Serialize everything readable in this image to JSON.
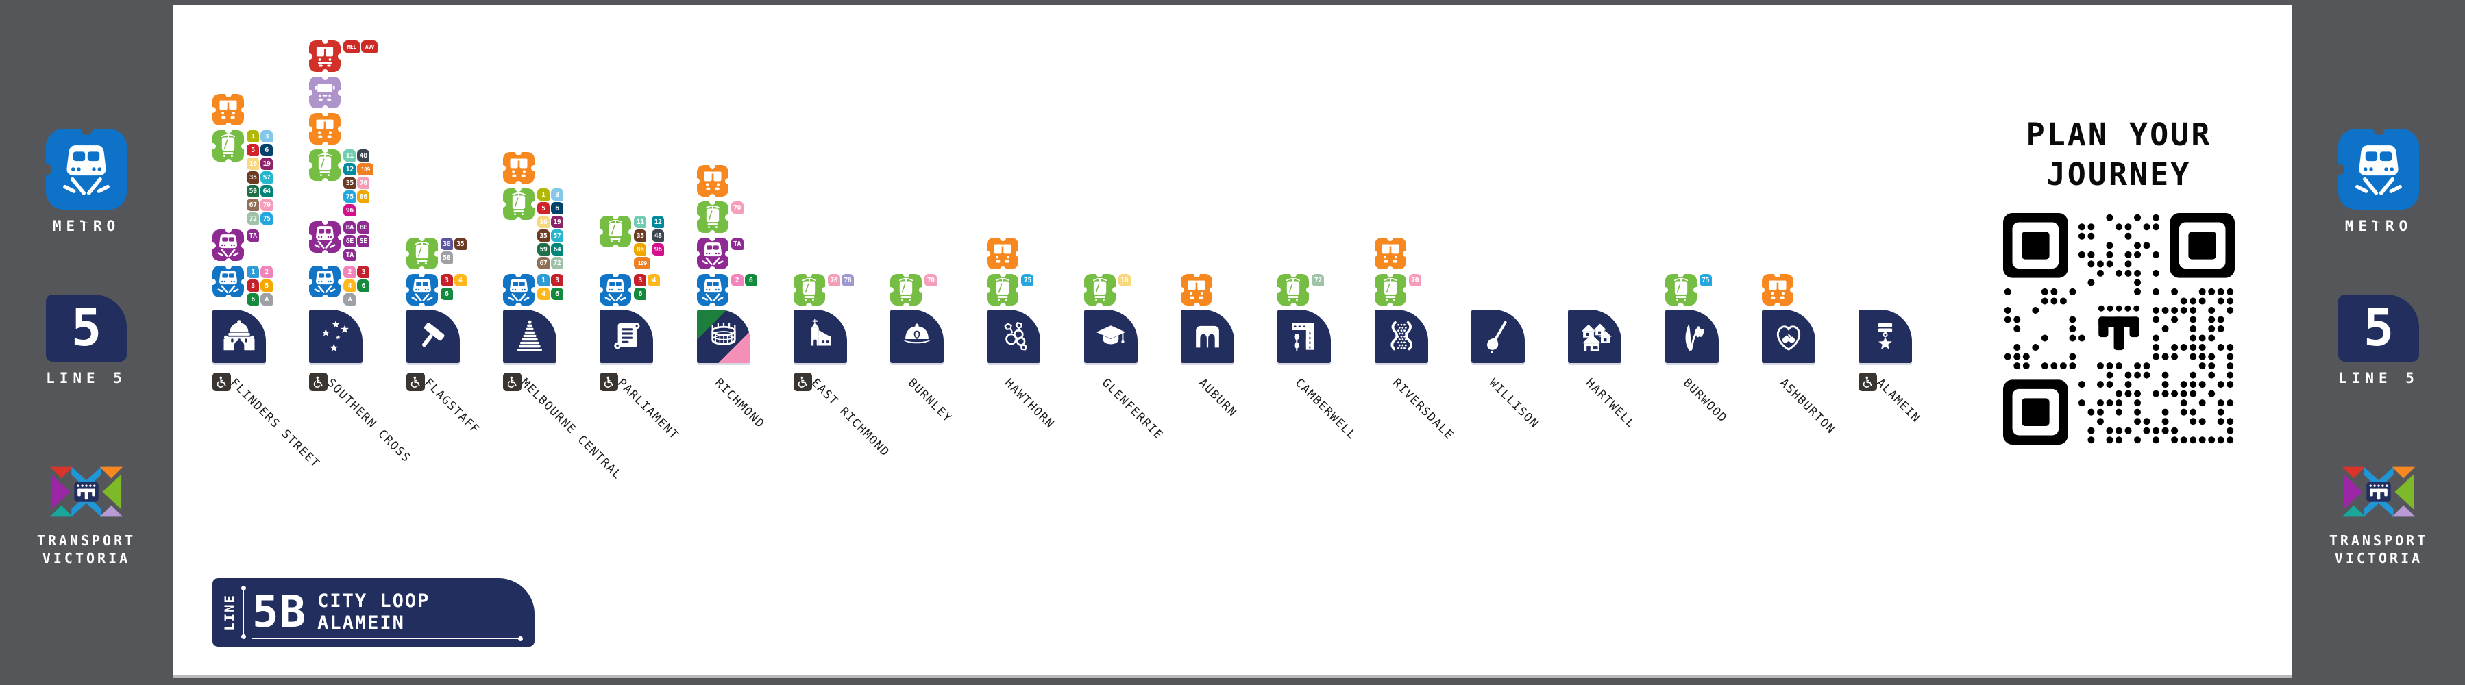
{
  "rail": {
    "metro_label": "METRO",
    "line_number": "5",
    "line_label": "LINE 5",
    "tv_label_1": "TRANSPORT",
    "tv_label_2": "VICTORIA",
    "metro_logo_icon": "metro-train-icon",
    "tv_logo_icon": "transport-victoria-icon"
  },
  "plan": {
    "line1": "PLAN YOUR",
    "line2": "JOURNEY",
    "qr_icon": "qr-code",
    "qr_logo_icon": "transport-victoria-t-icon"
  },
  "line_badge": {
    "line_word": "LINE",
    "code": "5B",
    "dest1": "CITY LOOP",
    "dest2": "ALAMEIN"
  },
  "colors": {
    "frame": "#55565A",
    "navy": "#212E5E",
    "metro_blue": "#0D72C8",
    "modes": {
      "bus": "#F6881F",
      "tram": "#76BD43",
      "metro": "#1274C5",
      "vline": "#8F2A93",
      "coach": "#D23129",
      "skybus": "#AE94CB"
    },
    "richmond_stripes": [
      "#1E7E3E",
      "#212E5E",
      "#F48FB8"
    ],
    "tram_routes": {
      "1": "#B0B800",
      "3": "#85C7E9",
      "5": "#D2232A",
      "6": "#01426A",
      "11": "#6FCDB2",
      "12": "#008A9B",
      "16": "#F9D77E",
      "19": "#8E2368",
      "30": "#5B569E",
      "35": "#6B3B23",
      "48": "#3C4650",
      "57": "#28B6CE",
      "58": "#9EA1A3",
      "59": "#1F7049",
      "64": "#008578",
      "67": "#8F6F55",
      "70": "#F59DB9",
      "72": "#9FC2A9",
      "75": "#24A7DF",
      "78": "#9D99D0",
      "86": "#EFA800",
      "96": "#D40F8C",
      "109": "#EE7F23"
    },
    "metro_routes": {
      "1": "#2E9BD6",
      "2": "#F284BC",
      "3": "#C5212C",
      "4": "#FFB81C",
      "5": "#F5A800",
      "6": "#148A3E",
      "A": "#9DA1A5"
    },
    "vline_route": "#8F2A93",
    "coach_route": "#CE2B26"
  },
  "stations": [
    {
      "name": "FLINDERS STREET",
      "icon": "dome-building",
      "accessible": true,
      "modes": [
        {
          "type": "bus",
          "routes": []
        },
        {
          "type": "tram",
          "routes": [
            "1",
            "3",
            "5",
            "6",
            "16",
            "19",
            "35",
            "57",
            "59",
            "64",
            "67",
            "70",
            "72",
            "75"
          ]
        },
        {
          "type": "vline",
          "routes": [
            "TA"
          ]
        },
        {
          "type": "metro",
          "routes": [
            "1",
            "2",
            "3",
            "5",
            "6",
            "A"
          ]
        }
      ]
    },
    {
      "name": "SOUTHERN CROSS",
      "icon": "southern-cross-stars",
      "accessible": true,
      "modes": [
        {
          "type": "coach",
          "routes": [
            "MEL",
            "AVV"
          ]
        },
        {
          "type": "skybus",
          "routes": []
        },
        {
          "type": "bus",
          "routes": []
        },
        {
          "type": "tram",
          "routes": [
            "11",
            "48",
            "12",
            "109",
            "35",
            "70",
            "75",
            "86",
            "96"
          ]
        },
        {
          "type": "vline",
          "routes": [
            "BA",
            "BE",
            "GE",
            "SE",
            "TA"
          ]
        },
        {
          "type": "metro",
          "routes": [
            "2",
            "3",
            "4",
            "6",
            "A"
          ]
        }
      ]
    },
    {
      "name": "FLAGSTAFF",
      "icon": "gavel",
      "accessible": true,
      "modes": [
        {
          "type": "tram",
          "routes": [
            "30",
            "35",
            "58"
          ]
        },
        {
          "type": "metro",
          "routes": [
            "3",
            "4",
            "6"
          ]
        }
      ]
    },
    {
      "name": "MELBOURNE CENTRAL",
      "icon": "shot-tower",
      "accessible": true,
      "modes": [
        {
          "type": "bus",
          "routes": []
        },
        {
          "type": "tram",
          "routes": [
            "1",
            "3",
            "5",
            "6",
            "16",
            "19",
            "35",
            "57",
            "59",
            "64",
            "67",
            "72"
          ]
        },
        {
          "type": "metro",
          "routes": [
            "1",
            "3",
            "4",
            "6"
          ]
        }
      ]
    },
    {
      "name": "PARLIAMENT",
      "icon": "scroll",
      "accessible": true,
      "modes": [
        {
          "type": "tram",
          "routes": [
            "11",
            "12",
            "35",
            "48",
            "86",
            "96",
            "109"
          ]
        },
        {
          "type": "metro",
          "routes": [
            "3",
            "4",
            "6"
          ]
        }
      ]
    },
    {
      "name": "RICHMOND",
      "icon": "stadium",
      "accessible": false,
      "richmond_style": true,
      "modes": [
        {
          "type": "bus",
          "routes": []
        },
        {
          "type": "tram",
          "routes": [
            "70"
          ]
        },
        {
          "type": "vline",
          "routes": [
            "TA"
          ]
        },
        {
          "type": "metro",
          "routes": [
            "2",
            "6"
          ]
        }
      ]
    },
    {
      "name": "EAST RICHMOND",
      "icon": "church",
      "accessible": true,
      "modes": [
        {
          "type": "tram",
          "routes": [
            "70",
            "78"
          ]
        }
      ]
    },
    {
      "name": "BURNLEY",
      "icon": "fire-helmet",
      "accessible": false,
      "modes": [
        {
          "type": "tram",
          "routes": [
            "70"
          ]
        }
      ]
    },
    {
      "name": "HAWTHORN",
      "icon": "hawthorn-berries",
      "accessible": false,
      "modes": [
        {
          "type": "bus",
          "routes": []
        },
        {
          "type": "tram",
          "routes": [
            "75"
          ]
        }
      ]
    },
    {
      "name": "GLENFERRIE",
      "icon": "graduation-cap",
      "accessible": false,
      "modes": [
        {
          "type": "tram",
          "routes": [
            "16"
          ]
        }
      ]
    },
    {
      "name": "AUBURN",
      "icon": "arches",
      "accessible": false,
      "modes": [
        {
          "type": "bus",
          "routes": []
        }
      ]
    },
    {
      "name": "CAMBERWELL",
      "icon": "road-junction",
      "accessible": false,
      "modes": [
        {
          "type": "tram",
          "routes": [
            "72"
          ]
        }
      ]
    },
    {
      "name": "RIVERSDALE",
      "icon": "river",
      "accessible": false,
      "modes": [
        {
          "type": "bus",
          "routes": []
        },
        {
          "type": "tram",
          "routes": [
            "70"
          ]
        }
      ]
    },
    {
      "name": "WILLISON",
      "icon": "golf-club",
      "accessible": false,
      "modes": []
    },
    {
      "name": "HARTWELL",
      "icon": "houses",
      "accessible": false,
      "modes": []
    },
    {
      "name": "BURWOOD",
      "icon": "snowdrop",
      "accessible": false,
      "modes": [
        {
          "type": "tram",
          "routes": [
            "75"
          ]
        }
      ]
    },
    {
      "name": "ASHBURTON",
      "icon": "handshake-heart",
      "accessible": false,
      "modes": [
        {
          "type": "bus",
          "routes": []
        }
      ]
    },
    {
      "name": "ALAMEIN",
      "icon": "star-medal",
      "accessible": true,
      "modes": []
    }
  ]
}
